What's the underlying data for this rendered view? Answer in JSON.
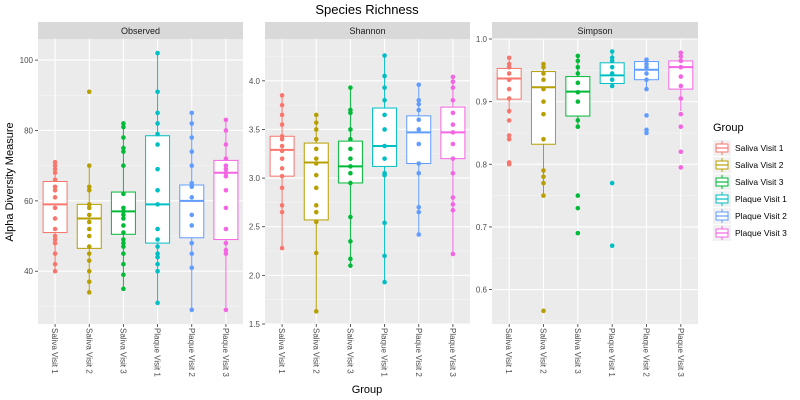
{
  "chart_data": {
    "type": "box",
    "title": "Species Richness",
    "xlabel": "Group",
    "ylabel": "Alpha Diversity Measure",
    "legend": {
      "title": "Group",
      "placement": "right",
      "entries": [
        "Saliva Visit 1",
        "Saliva Visit 2",
        "Saliva Visit 3",
        "Plaque Visit 1",
        "Plaque Visit 2",
        "Plaque Visit 3"
      ]
    },
    "categories": [
      "Saliva Visit 1",
      "Saliva Visit 2",
      "Saliva Visit 3",
      "Plaque Visit 1",
      "Plaque Visit 2",
      "Plaque Visit 3"
    ],
    "colors": [
      "#F8766D",
      "#B79F00",
      "#00BA38",
      "#00BFC4",
      "#619CFF",
      "#F564E3"
    ],
    "grid": true,
    "facets": [
      {
        "name": "Observed",
        "ylim": [
          25,
          106
        ],
        "ticks": [
          40,
          60,
          80,
          100
        ],
        "tick_labels": [
          "40",
          "60",
          "80",
          "100"
        ],
        "boxes": [
          {
            "q1": 51,
            "median": 59,
            "q3": 65.5,
            "whisker_low": 40,
            "whisker_high": 71
          },
          {
            "q1": 46.5,
            "median": 55,
            "q3": 59,
            "whisker_low": 34,
            "whisker_high": 70
          },
          {
            "q1": 50.5,
            "median": 57,
            "q3": 62.5,
            "whisker_low": 35,
            "whisker_high": 82
          },
          {
            "q1": 48,
            "median": 59,
            "q3": 78.5,
            "whisker_low": 31,
            "whisker_high": 102
          },
          {
            "q1": 49.5,
            "median": 60,
            "q3": 64.5,
            "whisker_low": 29,
            "whisker_high": 85
          },
          {
            "q1": 49,
            "median": 68,
            "q3": 71.5,
            "whisker_low": 29,
            "whisker_high": 83
          }
        ],
        "points": [
          [
            40,
            42,
            45,
            48,
            49,
            50,
            52,
            55,
            58,
            61,
            63,
            64,
            66,
            68,
            69,
            70,
            71
          ],
          [
            34,
            37,
            40,
            43,
            45,
            47,
            50,
            52,
            54,
            56,
            58,
            59,
            63,
            64,
            70,
            91
          ],
          [
            35,
            39,
            42,
            45,
            47,
            48,
            49,
            51,
            53,
            55,
            56,
            57,
            58,
            62,
            70,
            74,
            75,
            78,
            81,
            82
          ],
          [
            31,
            40,
            42,
            44,
            45,
            47,
            49,
            52,
            59,
            63,
            69,
            76,
            79,
            82,
            85,
            91,
            102
          ],
          [
            29,
            41,
            45,
            48,
            53,
            56,
            61,
            64,
            65,
            70,
            74,
            78,
            82,
            85
          ],
          [
            29,
            45,
            46,
            48,
            52,
            58,
            63,
            67,
            68,
            69,
            70,
            72,
            76,
            80,
            83
          ]
        ]
      },
      {
        "name": "Shannon",
        "ylim": [
          1.5,
          4.43
        ],
        "ticks": [
          1.5,
          2.0,
          2.5,
          3.0,
          3.5,
          4.0
        ],
        "tick_labels": [
          "1.5",
          "2.0",
          "2.5",
          "3.0",
          "3.5",
          "4.0"
        ],
        "boxes": [
          {
            "q1": 3.02,
            "median": 3.29,
            "q3": 3.43,
            "whisker_low": 2.28,
            "whisker_high": 3.85
          },
          {
            "q1": 2.57,
            "median": 3.16,
            "q3": 3.36,
            "whisker_low": 1.63,
            "whisker_high": 3.65
          },
          {
            "q1": 2.95,
            "median": 3.12,
            "q3": 3.38,
            "whisker_low": 2.1,
            "whisker_high": 3.93
          },
          {
            "q1": 3.12,
            "median": 3.33,
            "q3": 3.72,
            "whisker_low": 1.93,
            "whisker_high": 4.26
          },
          {
            "q1": 3.15,
            "median": 3.47,
            "q3": 3.64,
            "whisker_low": 2.42,
            "whisker_high": 3.96
          },
          {
            "q1": 3.2,
            "median": 3.47,
            "q3": 3.73,
            "whisker_low": 2.22,
            "whisker_high": 4.04
          }
        ],
        "points": [
          [
            2.28,
            2.65,
            2.72,
            2.9,
            3.02,
            3.1,
            3.2,
            3.28,
            3.33,
            3.4,
            3.43,
            3.55,
            3.65,
            3.75,
            3.85
          ],
          [
            1.63,
            2.23,
            2.55,
            2.65,
            2.72,
            2.9,
            3.03,
            3.15,
            3.2,
            3.3,
            3.4,
            3.5,
            3.57,
            3.65
          ],
          [
            2.1,
            2.17,
            2.35,
            2.6,
            2.95,
            3.05,
            3.12,
            3.2,
            3.3,
            3.4,
            3.5,
            3.67,
            3.7,
            3.93
          ],
          [
            1.93,
            2.2,
            2.54,
            3.03,
            3.05,
            3.2,
            3.33,
            3.5,
            3.65,
            3.8,
            3.93,
            4.05,
            4.26
          ],
          [
            2.42,
            2.65,
            2.7,
            3.05,
            3.15,
            3.35,
            3.5,
            3.6,
            3.7,
            3.76,
            3.8,
            3.96
          ],
          [
            2.22,
            2.67,
            2.73,
            2.8,
            3.05,
            3.2,
            3.35,
            3.47,
            3.55,
            3.67,
            3.8,
            3.93,
            3.99,
            4.04
          ]
        ]
      },
      {
        "name": "Simpson",
        "ylim": [
          0.545,
          1.0
        ],
        "ticks": [
          0.6,
          0.7,
          0.8,
          0.9,
          1.0
        ],
        "tick_labels": [
          "0.6",
          "0.7",
          "0.8",
          "0.9",
          "1.0"
        ],
        "boxes": [
          {
            "q1": 0.904,
            "median": 0.937,
            "q3": 0.953,
            "whisker_low": 0.88,
            "whisker_high": 0.97
          },
          {
            "q1": 0.832,
            "median": 0.923,
            "q3": 0.948,
            "whisker_low": 0.75,
            "whisker_high": 0.96
          },
          {
            "q1": 0.877,
            "median": 0.916,
            "q3": 0.94,
            "whisker_low": 0.862,
            "whisker_high": 0.973
          },
          {
            "q1": 0.929,
            "median": 0.942,
            "q3": 0.962,
            "whisker_low": 0.922,
            "whisker_high": 0.98
          },
          {
            "q1": 0.935,
            "median": 0.951,
            "q3": 0.964,
            "whisker_low": 0.918,
            "whisker_high": 0.967
          },
          {
            "q1": 0.92,
            "median": 0.955,
            "q3": 0.965,
            "whisker_low": 0.885,
            "whisker_high": 0.978
          }
        ],
        "points": [
          [
            0.8,
            0.803,
            0.84,
            0.846,
            0.87,
            0.885,
            0.905,
            0.92,
            0.935,
            0.945,
            0.955,
            0.96,
            0.97
          ],
          [
            0.566,
            0.75,
            0.77,
            0.78,
            0.79,
            0.84,
            0.88,
            0.9,
            0.92,
            0.935,
            0.945,
            0.955,
            0.96
          ],
          [
            0.69,
            0.73,
            0.75,
            0.86,
            0.87,
            0.9,
            0.915,
            0.93,
            0.945,
            0.955,
            0.965,
            0.973
          ],
          [
            0.67,
            0.77,
            0.925,
            0.935,
            0.945,
            0.955,
            0.965,
            0.97,
            0.98
          ],
          [
            0.85,
            0.855,
            0.878,
            0.92,
            0.935,
            0.945,
            0.955,
            0.96,
            0.967
          ],
          [
            0.795,
            0.82,
            0.86,
            0.88,
            0.905,
            0.925,
            0.94,
            0.955,
            0.965,
            0.972,
            0.978
          ]
        ]
      }
    ]
  }
}
